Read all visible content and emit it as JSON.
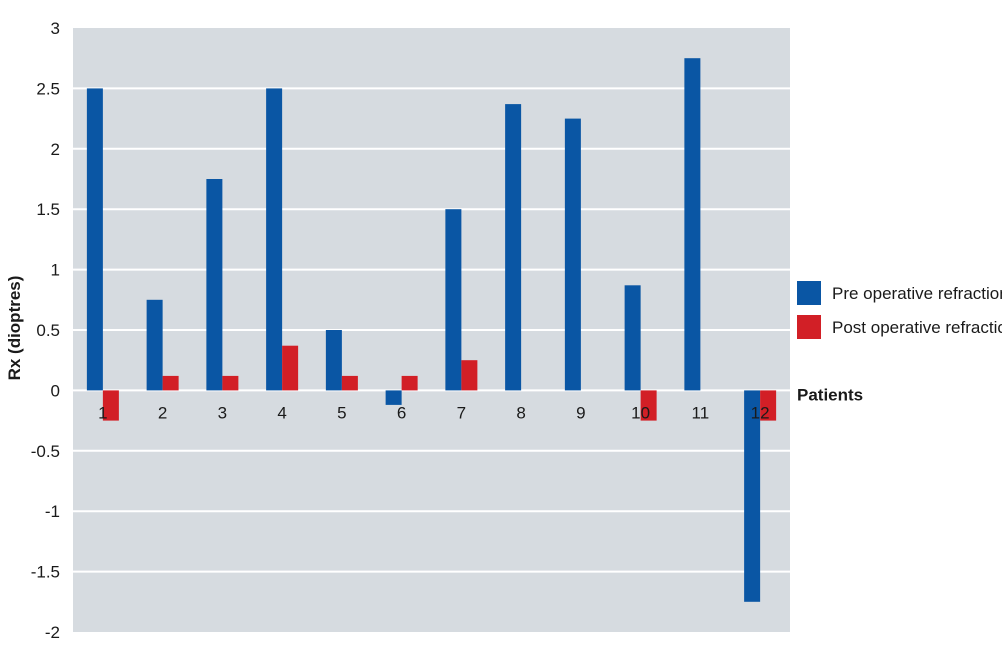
{
  "chart_data": {
    "type": "bar",
    "categories": [
      "1",
      "2",
      "3",
      "4",
      "5",
      "6",
      "7",
      "8",
      "9",
      "10",
      "11",
      "12"
    ],
    "series": [
      {
        "name": "Pre operative refraction",
        "values": [
          2.5,
          0.75,
          1.75,
          2.5,
          0.5,
          -0.12,
          1.5,
          2.37,
          2.25,
          0.87,
          2.75,
          -1.75
        ]
      },
      {
        "name": "Post operative refractio",
        "values": [
          -0.25,
          0.12,
          0.12,
          0.37,
          0.12,
          0.12,
          0.25,
          0,
          0,
          -0.25,
          0,
          -0.25
        ]
      }
    ],
    "title": "",
    "xlabel": "Patients",
    "ylabel": "Rx (dioptres)",
    "ylim": [
      -2,
      3
    ],
    "yticks": [
      "3",
      "2.5",
      "2",
      "1.5",
      "1",
      "0.5",
      "0",
      "-0.5",
      "-1",
      "-1.5",
      "-2"
    ],
    "grid": true,
    "legend_position": "right",
    "colors": {
      "pre": "#0a56a4",
      "post": "#d21f26",
      "plot_bg": "#d6dbe0",
      "grid": "#ffffff"
    }
  }
}
